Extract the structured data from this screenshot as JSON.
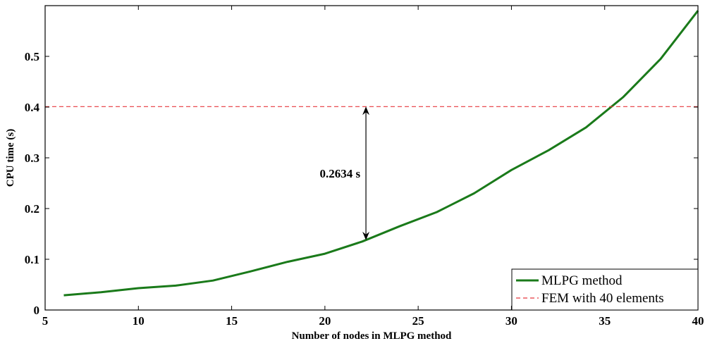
{
  "chart_data": {
    "type": "line",
    "title": "",
    "xlabel": "Number of nodes in MLPG method",
    "ylabel": "CPU time (s)",
    "xlim": [
      5,
      40
    ],
    "ylim": [
      0,
      0.6
    ],
    "xticks": [
      5,
      10,
      15,
      20,
      25,
      30,
      35,
      40
    ],
    "yticks": [
      0,
      0.1,
      0.2,
      0.3,
      0.4,
      0.5
    ],
    "xtick_labels": [
      "5",
      "10",
      "15",
      "20",
      "25",
      "30",
      "35",
      "40"
    ],
    "ytick_labels": [
      "0",
      "0.1",
      "0.2",
      "0.3",
      "0.4",
      "0.5"
    ],
    "grid": false,
    "legend_position": "bottom-right",
    "series": [
      {
        "name": "MLPG method",
        "style": "solid",
        "color": "#1a7a1a",
        "x": [
          6,
          8,
          10,
          12,
          14,
          16,
          18,
          20,
          22,
          24,
          26,
          28,
          30,
          32,
          34,
          36,
          38,
          40
        ],
        "y": [
          0.029,
          0.035,
          0.043,
          0.048,
          0.058,
          0.076,
          0.095,
          0.111,
          0.135,
          0.165,
          0.193,
          0.23,
          0.276,
          0.315,
          0.36,
          0.42,
          0.495,
          0.59
        ]
      },
      {
        "name": "FEM with 40 elements",
        "style": "dashed",
        "color": "#e8383d",
        "x": [
          5,
          40
        ],
        "y": [
          0.401,
          0.401
        ]
      }
    ],
    "annotations": [
      {
        "text": "0.2634 s",
        "type": "double-arrow",
        "x": 22.2,
        "y_from": 0.1376,
        "y_to": 0.401
      }
    ]
  }
}
